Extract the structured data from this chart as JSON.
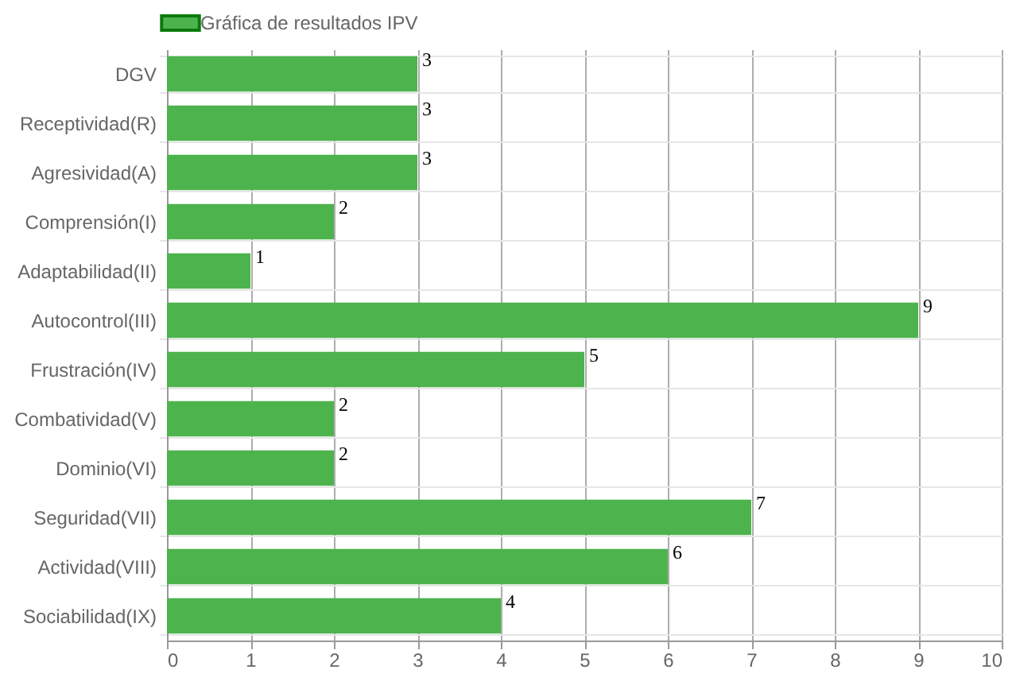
{
  "chart_data": {
    "type": "bar",
    "orientation": "horizontal",
    "categories": [
      "DGV",
      "Receptividad(R)",
      "Agresividad(A)",
      "Comprensión(I)",
      "Adaptabilidad(II)",
      "Autocontrol(III)",
      "Frustración(IV)",
      "Combatividad(V)",
      "Dominio(VI)",
      "Seguridad(VII)",
      "Actividad(VIII)",
      "Sociabilidad(IX)"
    ],
    "series": [
      {
        "name": "Gráfica de resultados IPV",
        "color": "#4db34d",
        "values": [
          3,
          3,
          3,
          2,
          1,
          9,
          5,
          2,
          2,
          7,
          6,
          4
        ]
      }
    ],
    "xlim": [
      0,
      10
    ],
    "xticks": [
      0,
      1,
      2,
      3,
      4,
      5,
      6,
      7,
      8,
      9,
      10
    ],
    "grid": true,
    "legend": "top",
    "data_labels": true
  }
}
